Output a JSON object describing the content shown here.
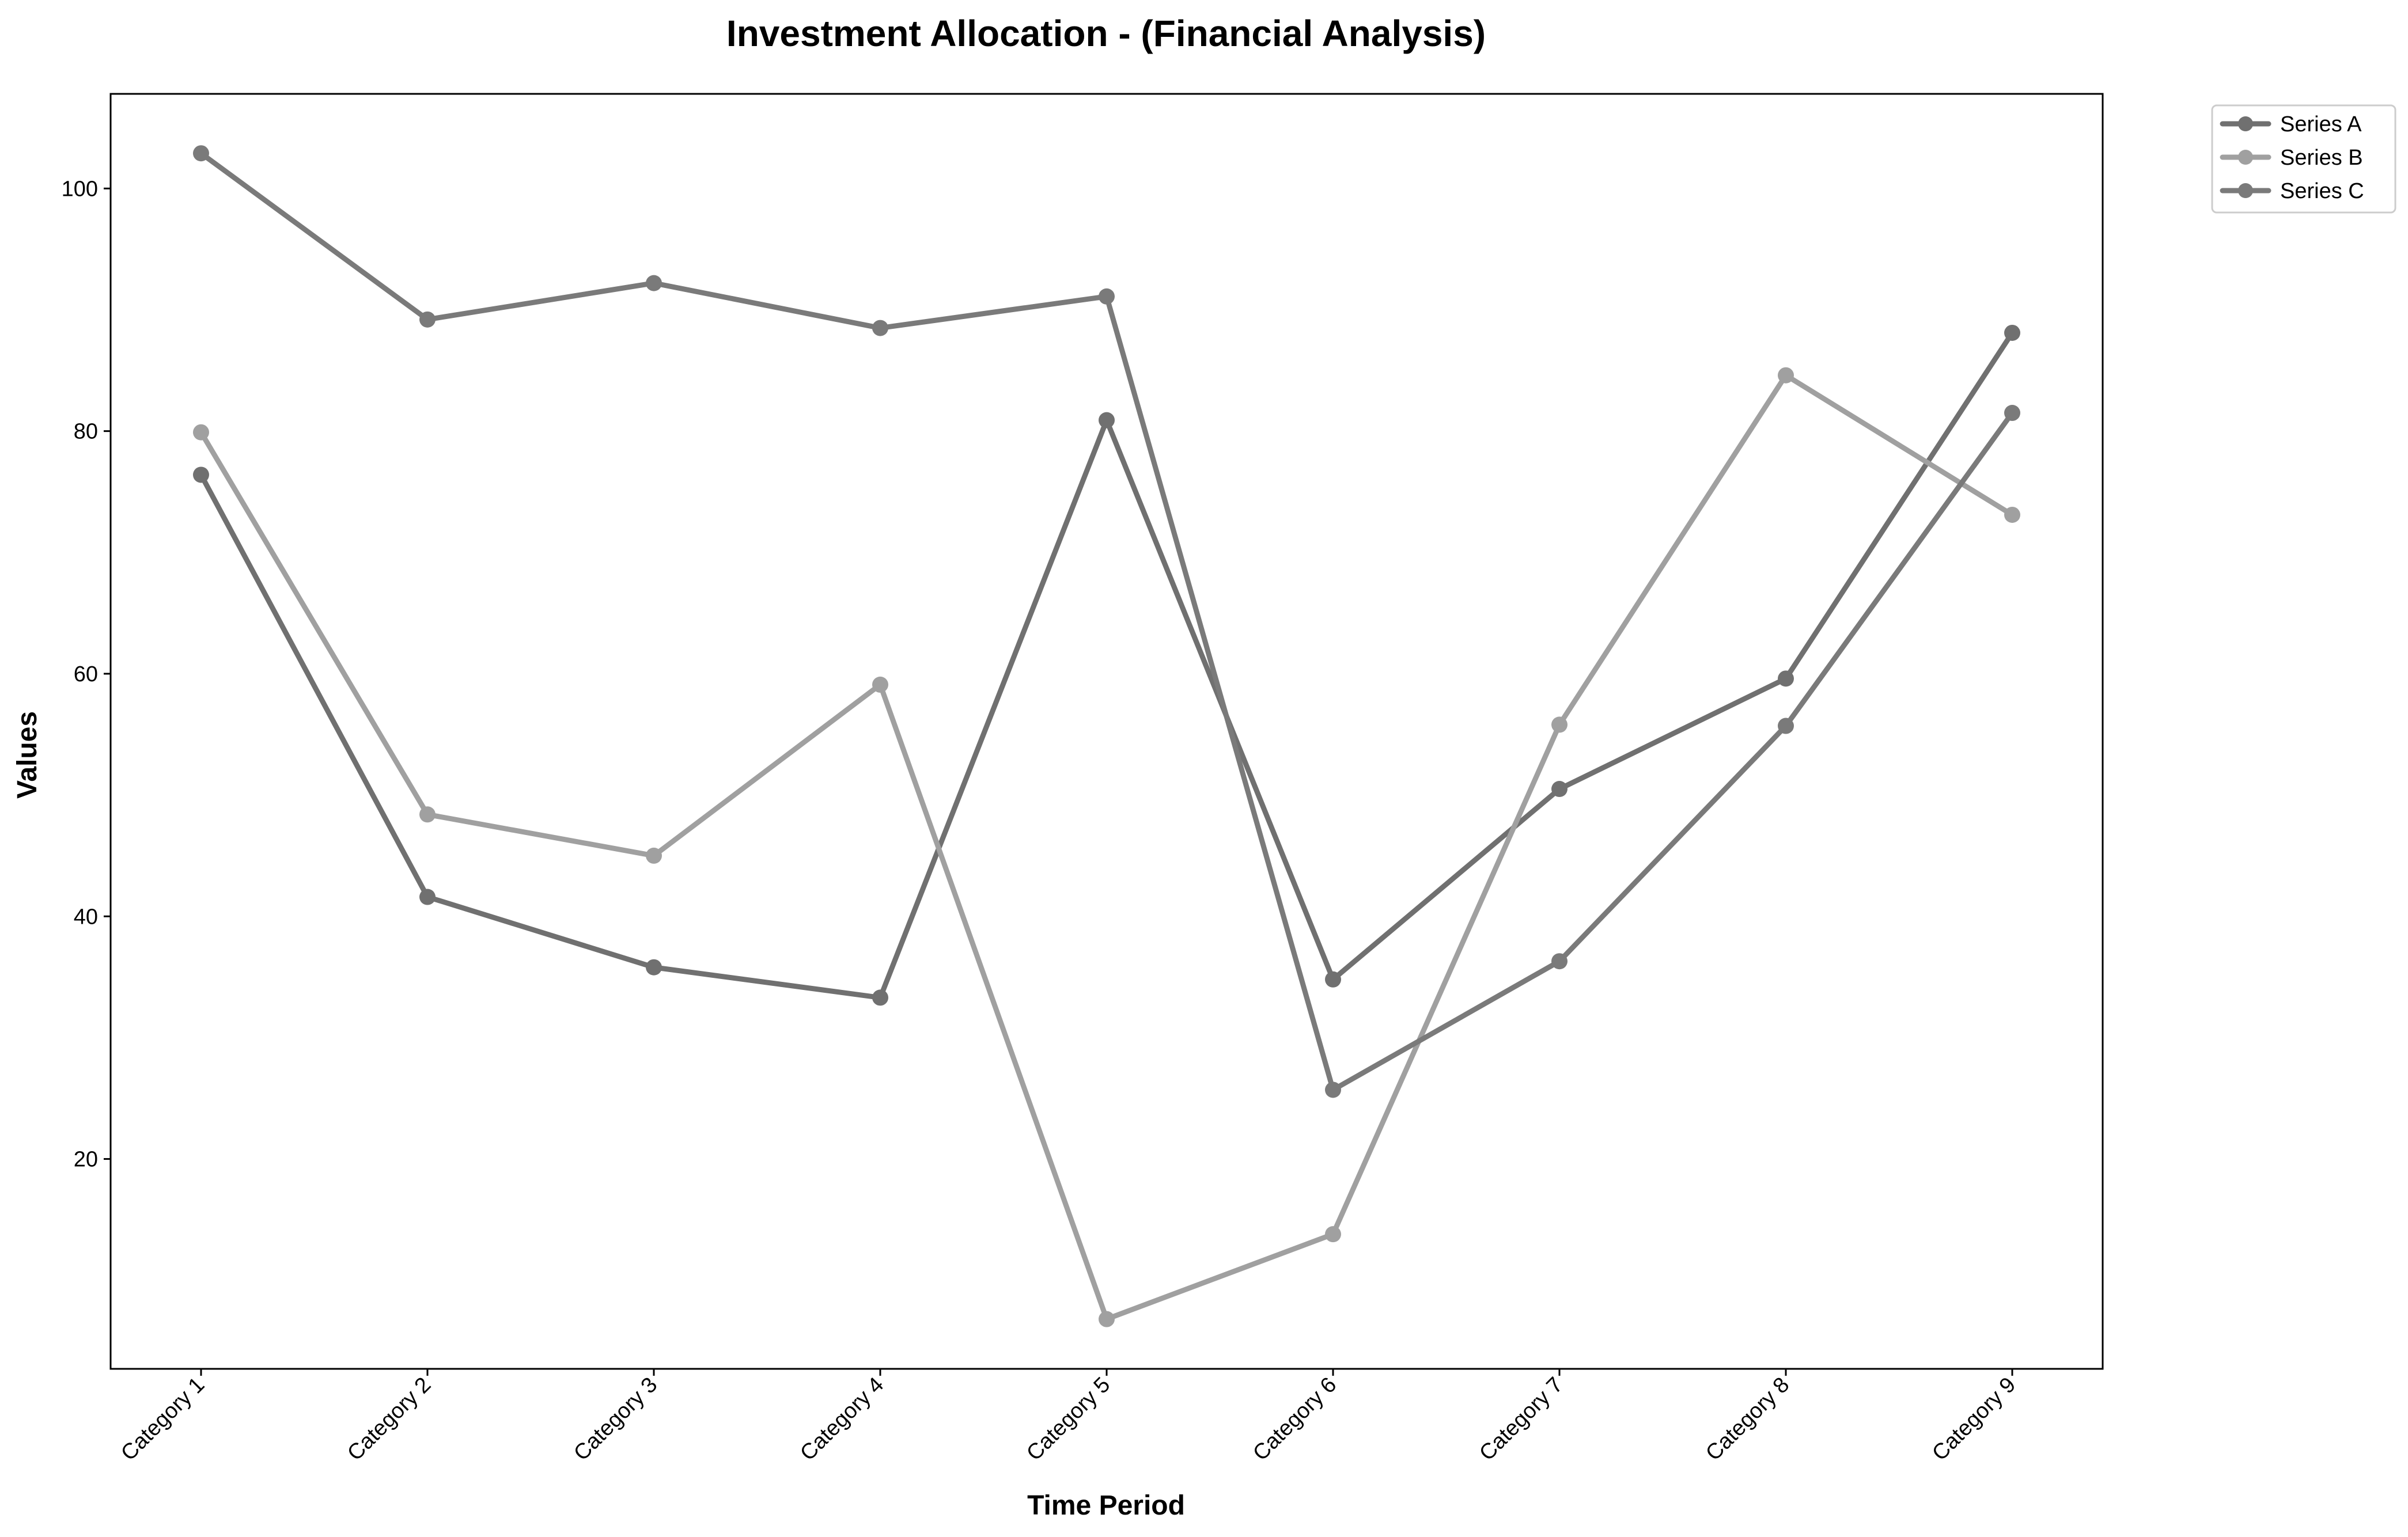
{
  "chart_data": {
    "type": "line",
    "title": "Investment Allocation - (Financial Analysis)",
    "xlabel": "Time Period",
    "ylabel": "Values",
    "categories": [
      "Category 1",
      "Category 2",
      "Category 3",
      "Category 4",
      "Category 5",
      "Category 6",
      "Category 7",
      "Category 8",
      "Category 9"
    ],
    "ylim": [
      2.7,
      107.8
    ],
    "yticks": [
      "20",
      "40",
      "60",
      "80",
      "100"
    ],
    "grid": false,
    "legend_position": "upper right, outside plot",
    "series": [
      {
        "name": "Series A",
        "color": "#707070",
        "values": [
          76.4,
          41.6,
          35.8,
          33.3,
          80.9,
          34.8,
          50.5,
          59.6,
          88.1
        ]
      },
      {
        "name": "Series B",
        "color": "#a0a0a0",
        "values": [
          79.9,
          48.4,
          45.0,
          59.1,
          6.8,
          13.8,
          55.8,
          84.6,
          73.1
        ]
      },
      {
        "name": "Series C",
        "color": "#7a7a7a",
        "values": [
          102.9,
          89.2,
          92.2,
          88.5,
          91.1,
          25.7,
          36.3,
          55.7,
          81.5
        ]
      }
    ]
  }
}
